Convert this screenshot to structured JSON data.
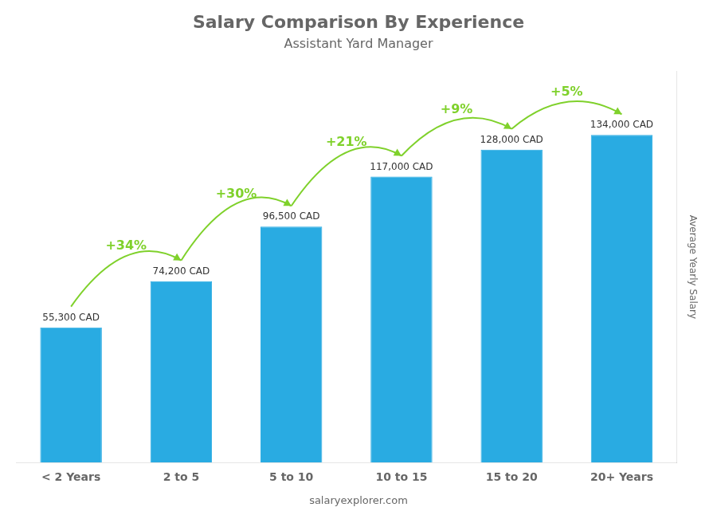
{
  "chart_data": {
    "type": "bar",
    "title": "Salary Comparison By Experience",
    "subtitle": "Assistant Yard Manager",
    "ylabel": "Average Yearly Salary",
    "categories": [
      "< 2 Years",
      "2 to 5",
      "5 to 10",
      "10 to 15",
      "15 to 20",
      "20+ Years"
    ],
    "values": [
      55300,
      74200,
      96500,
      117000,
      128000,
      134000
    ],
    "value_labels": [
      "55,300 CAD",
      "74,200 CAD",
      "96,500 CAD",
      "117,000 CAD",
      "128,000 CAD",
      "134,000 CAD"
    ],
    "data_labels": true,
    "color": "#29ABE2",
    "ylim": [
      0,
      160000
    ],
    "tick_labels": "x",
    "grid": false,
    "annotations": [
      {
        "text": "+34%",
        "color": "#7FD12B"
      },
      {
        "text": "+30%",
        "color": "#7FD12B"
      },
      {
        "text": "+21%",
        "color": "#7FD12B"
      },
      {
        "text": "+9%",
        "color": "#7FD12B"
      },
      {
        "text": "+5%",
        "color": "#7FD12B"
      }
    ],
    "footer": "salaryexplorer.com"
  }
}
